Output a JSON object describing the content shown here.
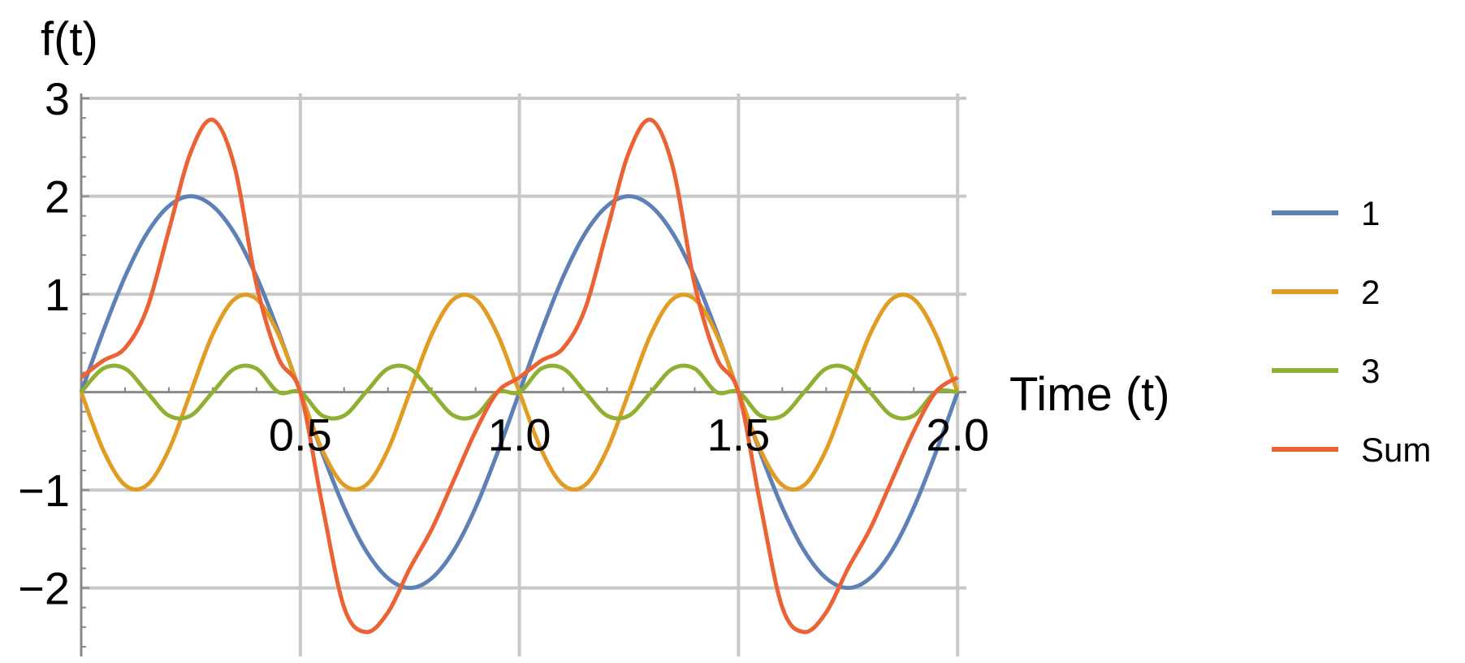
{
  "chart_data": {
    "type": "line",
    "xlabel": "Time (t)",
    "ylabel": "f(t)",
    "xlim": [
      0,
      2.02
    ],
    "ylim": [
      -2.7,
      3.05
    ],
    "x_ticks": [
      0.5,
      1.0,
      1.5,
      2.0
    ],
    "x_tick_labels": [
      "0.5",
      "1.0",
      "1.5",
      "2.0"
    ],
    "y_ticks": [
      -2,
      -1,
      1,
      2,
      3
    ],
    "y_tick_labels": [
      "−2",
      "−1",
      "1",
      "2",
      "3"
    ],
    "grid": true,
    "legend_position": "right",
    "x": [
      0,
      0.05,
      0.1,
      0.15,
      0.2,
      0.25,
      0.3,
      0.35,
      0.4,
      0.45,
      0.5,
      0.55,
      0.6,
      0.65,
      0.7,
      0.75,
      0.8,
      0.85,
      0.9,
      0.95,
      1.0,
      1.05,
      1.1,
      1.15,
      1.2,
      1.25,
      1.3,
      1.35,
      1.4,
      1.45,
      1.5,
      1.55,
      1.6,
      1.65,
      1.7,
      1.75,
      1.8,
      1.85,
      1.9,
      1.95,
      2.0
    ],
    "series": [
      {
        "name": "1",
        "color": "#5E81B5",
        "values": [
          0,
          0.62,
          1.18,
          1.62,
          1.9,
          2.0,
          1.9,
          1.62,
          1.18,
          0.62,
          0,
          -0.62,
          -1.18,
          -1.62,
          -1.9,
          -2.0,
          -1.9,
          -1.62,
          -1.18,
          -0.62,
          0,
          0.62,
          1.18,
          1.62,
          1.9,
          2.0,
          1.9,
          1.62,
          1.18,
          0.62,
          0,
          -0.62,
          -1.18,
          -1.62,
          -1.9,
          -2.0,
          -1.9,
          -1.62,
          -1.18,
          -0.62,
          0
        ]
      },
      {
        "name": "2",
        "color": "#E19C24",
        "values": [
          0,
          -0.59,
          -0.95,
          -0.95,
          -0.59,
          0,
          0.59,
          0.95,
          0.95,
          0.59,
          0,
          -0.59,
          -0.95,
          -0.95,
          -0.59,
          0,
          0.59,
          0.95,
          0.95,
          0.59,
          0,
          -0.59,
          -0.95,
          -0.95,
          -0.59,
          0,
          0.59,
          0.95,
          0.95,
          0.59,
          0,
          -0.59,
          -0.95,
          -0.95,
          -0.59,
          0,
          0.59,
          0.95,
          0.95,
          0.59,
          0
        ]
      },
      {
        "name": "3",
        "color": "#8FB032",
        "values": [
          0,
          0.24,
          0.24,
          0,
          -0.24,
          -0.24,
          0,
          0.24,
          0.24,
          0,
          0,
          -0.24,
          -0.24,
          0,
          0.24,
          0.24,
          0,
          -0.24,
          -0.24,
          0,
          0,
          0.24,
          0.24,
          0,
          -0.24,
          -0.24,
          0,
          0.24,
          0.24,
          0,
          0,
          -0.24,
          -0.24,
          0,
          0.24,
          0.24,
          0,
          -0.24,
          -0.24,
          0,
          0
        ]
      },
      {
        "name": "Sum",
        "color": "#EB6235",
        "values": [
          0.15,
          0.32,
          0.45,
          0.85,
          1.65,
          2.45,
          2.78,
          2.3,
          1.1,
          0.35,
          0.0,
          -1.15,
          -2.2,
          -2.45,
          -2.25,
          -1.8,
          -1.4,
          -0.9,
          -0.4,
          0.0,
          0.15,
          0.32,
          0.45,
          0.85,
          1.65,
          2.45,
          2.78,
          2.3,
          1.1,
          0.35,
          0.0,
          -1.15,
          -2.2,
          -2.45,
          -2.25,
          -1.8,
          -1.4,
          -0.9,
          -0.4,
          0.0,
          0.15
        ]
      }
    ]
  }
}
